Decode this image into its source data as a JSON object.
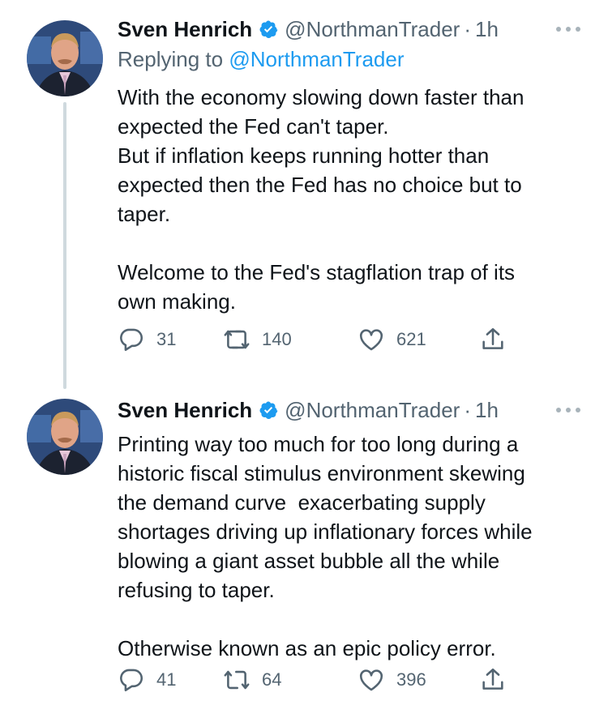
{
  "tweets": [
    {
      "author": {
        "name": "Sven Henrich",
        "handle": "@NorthmanTrader",
        "time": "1h"
      },
      "replying_label": "Replying to",
      "replying_to": "@NorthmanTrader",
      "text": "With the economy slowing down faster than\nexpected the Fed can't taper.\nBut if inflation keeps running hotter than\nexpected then the Fed has no choice but to\ntaper.\n\nWelcome to the Fed's stagflation trap of its\nown making.",
      "stats": {
        "replies": "31",
        "retweets": "140",
        "likes": "621"
      }
    },
    {
      "author": {
        "name": "Sven Henrich",
        "handle": "@NorthmanTrader",
        "time": "1h"
      },
      "text": "Printing way too much for too long during a\nhistoric fiscal stimulus environment skewing\nthe demand curve  exacerbating supply\nshortages driving up inflationary forces while\nblowing a giant asset bubble all the while\nrefusing to taper.\n\nOtherwise known as an epic policy error.",
      "stats": {
        "replies": "41",
        "retweets": "64",
        "likes": "396"
      }
    }
  ],
  "separator": "·",
  "icons": {
    "verified": "verified-badge-icon",
    "more": "more-dots-icon",
    "reply": "reply-bubble-icon",
    "retweet": "retweet-icon",
    "like": "heart-icon",
    "share": "share-icon"
  },
  "colors": {
    "verified": "#1d9bf0",
    "muted": "#536471",
    "link": "#1d9bf0",
    "thread_line": "#cfd9de"
  }
}
